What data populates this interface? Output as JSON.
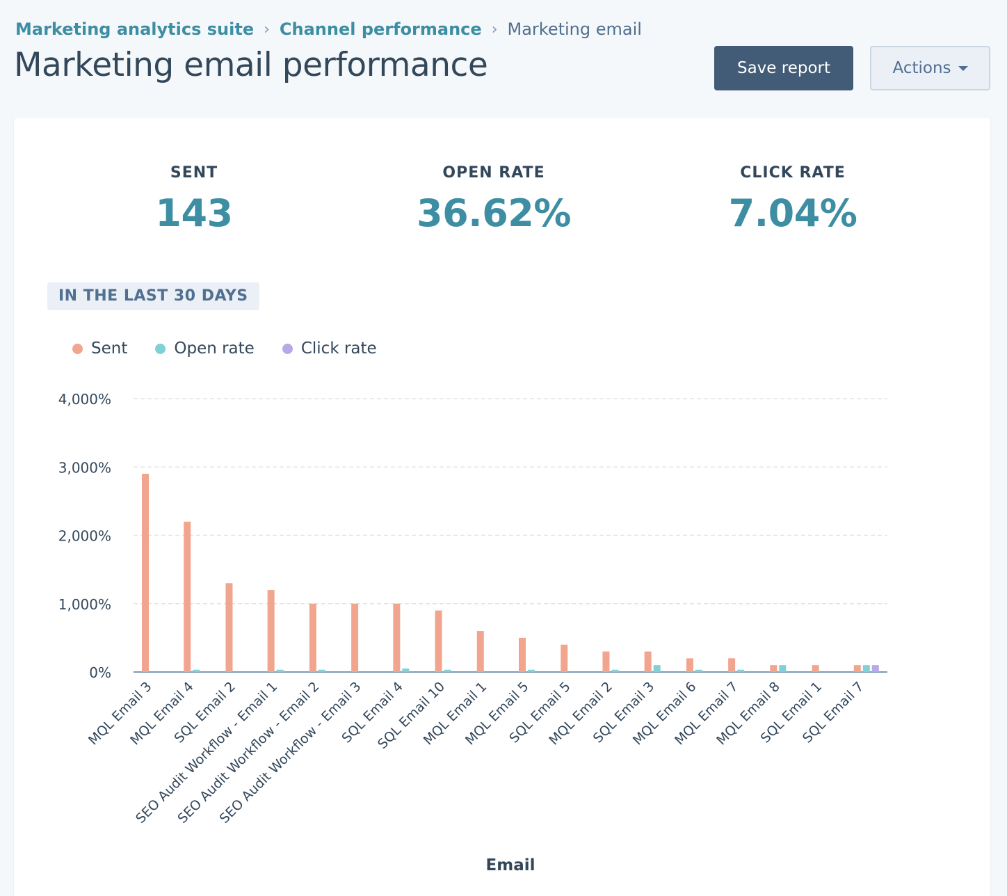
{
  "breadcrumb": {
    "items": [
      "Marketing analytics suite",
      "Channel performance"
    ],
    "current": "Marketing email",
    "separator": "›"
  },
  "page_title": "Marketing email performance",
  "buttons": {
    "save": "Save report",
    "actions": "Actions"
  },
  "kpis": [
    {
      "label": "SENT",
      "value": "143"
    },
    {
      "label": "OPEN RATE",
      "value": "36.62%"
    },
    {
      "label": "CLICK RATE",
      "value": "7.04%"
    }
  ],
  "date_range": "IN THE LAST 30 DAYS",
  "colors": {
    "sent": "#f2a58e",
    "open_rate": "#7fd1d6",
    "click_rate": "#b8a8e8",
    "accent": "#3d8ea3"
  },
  "chart_data": {
    "type": "bar",
    "xlabel": "Email",
    "ylabel": "",
    "ylim": [
      0,
      4000
    ],
    "yticks": [
      "0%",
      "1,000%",
      "2,000%",
      "3,000%",
      "4,000%"
    ],
    "grid": true,
    "legend_position": "top-left",
    "categories": [
      "MQL Email 3",
      "MQL Email 4",
      "SQL Email 2",
      "SEO Audit Workflow - Email 1",
      "SEO Audit Workflow - Email 2",
      "SEO Audit Workflow - Email 3",
      "SQL Email 4",
      "SQL Email 10",
      "MQL Email 1",
      "MQL Email 5",
      "SQL Email 5",
      "MQL Email 2",
      "SQL Email 3",
      "MQL Email 6",
      "MQL Email 7",
      "MQL Email 8",
      "SQL Email 1",
      "SQL Email 7"
    ],
    "series": [
      {
        "name": "Sent",
        "values": [
          2900,
          2200,
          1300,
          1200,
          1000,
          1000,
          1000,
          900,
          600,
          500,
          400,
          300,
          300,
          200,
          200,
          100,
          100,
          100
        ]
      },
      {
        "name": "Open rate",
        "values": [
          0,
          33,
          0,
          33,
          33,
          0,
          50,
          33,
          0,
          33,
          0,
          33,
          100,
          33,
          33,
          100,
          0,
          100
        ]
      },
      {
        "name": "Click rate",
        "values": [
          0,
          0,
          0,
          0,
          0,
          0,
          0,
          0,
          0,
          0,
          0,
          0,
          0,
          0,
          0,
          0,
          0,
          100
        ]
      }
    ]
  }
}
